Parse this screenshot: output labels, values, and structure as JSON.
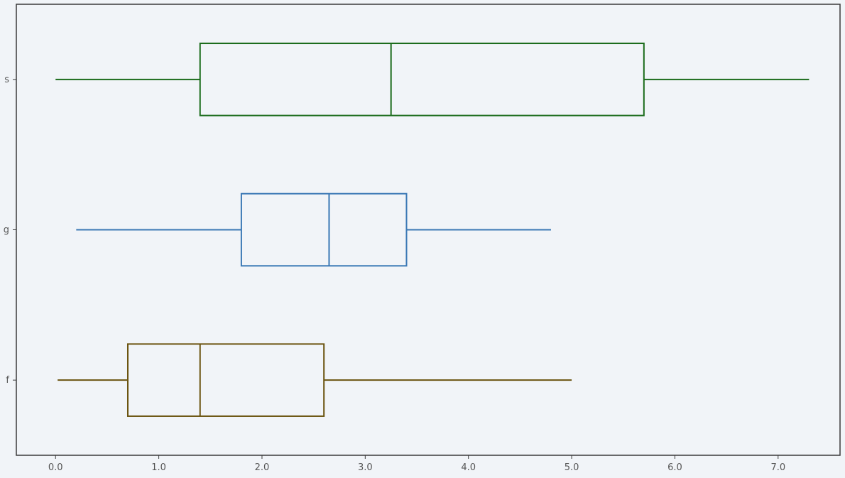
{
  "chart_data": {
    "type": "boxplot",
    "orientation": "horizontal",
    "title": "",
    "xlabel": "",
    "ylabel": "",
    "xlim": [
      -0.38,
      7.6
    ],
    "xticks": [
      0,
      1,
      2,
      3,
      4,
      5,
      6,
      7
    ],
    "xtick_labels": [
      "0.0",
      "1.0",
      "2.0",
      "3.0",
      "4.0",
      "5.0",
      "6.0",
      "7.0"
    ],
    "categories": [
      "s",
      "g",
      "f"
    ],
    "grid": false,
    "series": [
      {
        "category": "s",
        "color": "#1a6b1a",
        "min": 0.0,
        "q1": 1.4,
        "median": 3.25,
        "q3": 5.7,
        "max": 7.3
      },
      {
        "category": "g",
        "color": "#3a78b5",
        "min": 0.2,
        "q1": 1.8,
        "median": 2.65,
        "q3": 3.4,
        "max": 4.8
      },
      {
        "category": "f",
        "color": "#6b5410",
        "min": 0.02,
        "q1": 0.7,
        "median": 1.4,
        "q3": 2.6,
        "max": 5.0
      }
    ],
    "colors": {
      "background": "#f1f4f8",
      "frame": "#3a3a3a",
      "tick_text": "#555555"
    }
  }
}
